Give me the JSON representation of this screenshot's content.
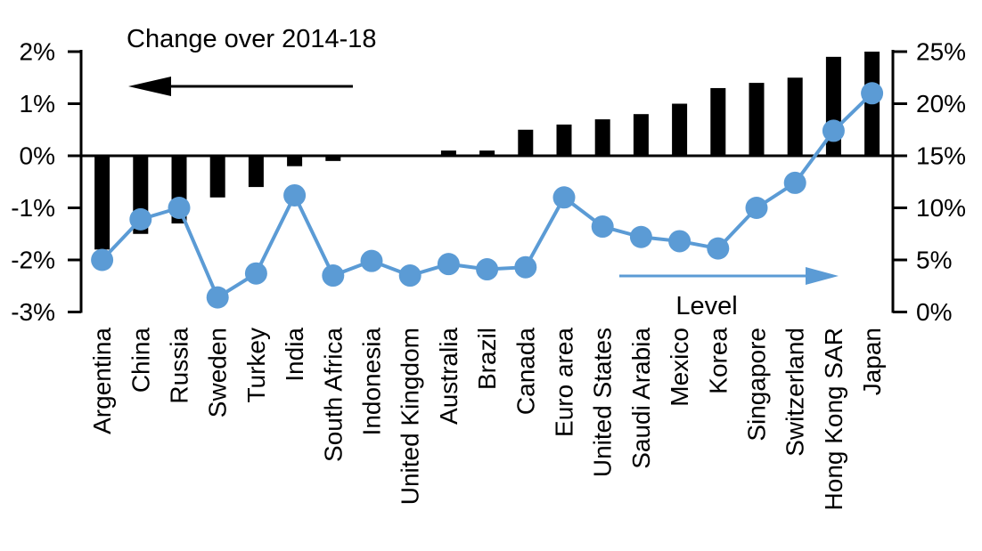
{
  "chart_data": {
    "type": "combo",
    "title": "",
    "grid": "off",
    "legend": "in-plot arrow annotations",
    "categories": [
      "Argentina",
      "China",
      "Russia",
      "Sweden",
      "Turkey",
      "India",
      "South Africa",
      "Indonesia",
      "United Kingdom",
      "Australia",
      "Brazil",
      "Canada",
      "Euro area",
      "United States",
      "Saudi Arabia",
      "Mexico",
      "Korea",
      "Singapore",
      "Switzerland",
      "Hong Kong SAR",
      "Japan"
    ],
    "series": [
      {
        "name": "Change over 2014-18",
        "type": "bar",
        "axis": "left",
        "unit": "%",
        "color": "#000000",
        "values": [
          -1.8,
          -1.5,
          -1.3,
          -0.8,
          -0.6,
          -0.2,
          -0.1,
          0,
          0,
          0.1,
          0.1,
          0.5,
          0.6,
          0.7,
          0.8,
          1.0,
          1.3,
          1.4,
          1.5,
          1.9,
          2.0
        ]
      },
      {
        "name": "Level",
        "type": "line",
        "axis": "right",
        "unit": "%",
        "color": "#5B9BD5",
        "values": [
          5.0,
          8.9,
          10.0,
          1.4,
          3.7,
          11.2,
          3.5,
          4.9,
          3.5,
          4.6,
          4.1,
          4.3,
          11.0,
          8.2,
          7.2,
          6.8,
          6.1,
          10.0,
          12.4,
          17.4,
          21.0
        ]
      }
    ],
    "left_axis": {
      "tick_labels": [
        "2%",
        "1%",
        "0%",
        "-1%",
        "-2%",
        "-3%"
      ],
      "tick_values": [
        2,
        1,
        0,
        -1,
        -2,
        -3
      ],
      "min": -3,
      "max": 2
    },
    "right_axis": {
      "tick_labels": [
        "25%",
        "20%",
        "15%",
        "10%",
        "5%",
        "0%"
      ],
      "tick_values": [
        25,
        20,
        15,
        10,
        5,
        0
      ],
      "min": 0,
      "max": 25
    }
  }
}
